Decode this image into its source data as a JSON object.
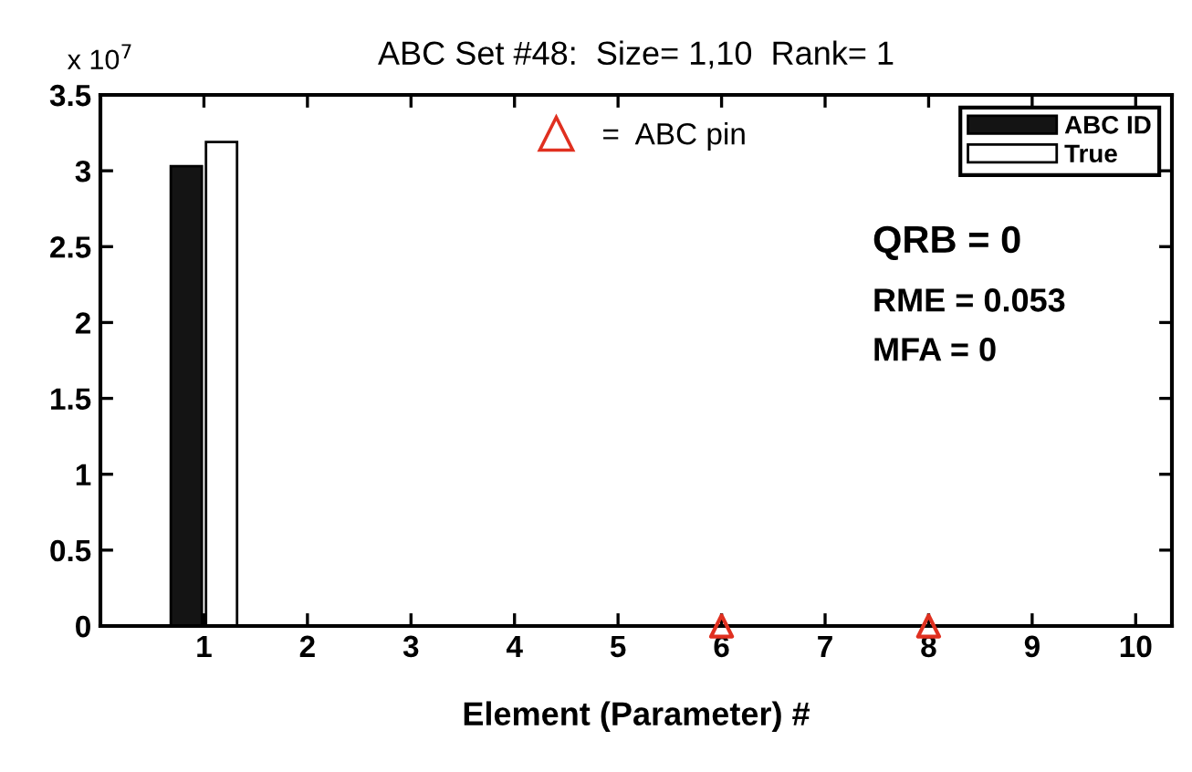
{
  "chart_data": {
    "type": "bar",
    "title": "ABC Set #48:  Size= 1,10  Rank= 1",
    "xlabel": "Element (Parameter) #",
    "series": [
      {
        "name": "ABC ID",
        "color": "#141414",
        "x": [
          1
        ],
        "values": [
          3.03
        ]
      },
      {
        "name": "True",
        "color": "#ffffff",
        "x": [
          1
        ],
        "values": [
          3.19
        ]
      },
      {
        "name": "=  ABC pin",
        "type": "scatter",
        "marker": "triangle",
        "color": "#e03020",
        "x": [
          6,
          8
        ],
        "values": [
          0,
          0
        ]
      }
    ],
    "xlim": [
      0,
      10.35
    ],
    "xticks": [
      1,
      2,
      3,
      4,
      5,
      6,
      7,
      8,
      9,
      10
    ],
    "ylim": [
      0,
      3.5
    ],
    "yticks": [
      0,
      0.5,
      1,
      1.5,
      2,
      2.5,
      3,
      3.5
    ],
    "annotations": [
      "x 10$^{7}$",
      "QRB = 0",
      "RME = 0.053",
      "MFA = 0"
    ],
    "grid": false,
    "legend": "top right"
  }
}
